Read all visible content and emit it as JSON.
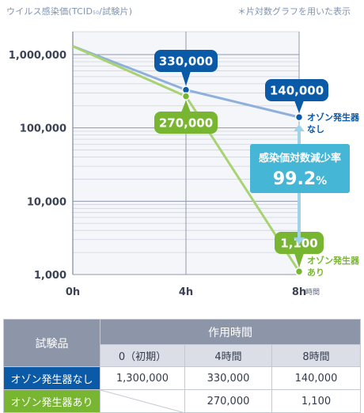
{
  "header": {
    "y_title_main": "ウイルス感染価(TCID",
    "y_title_sub": "50",
    "y_title_end": "/試験片)",
    "note": "＊片対数グラフを用いた表示"
  },
  "chart_data": {
    "type": "line",
    "yscale": "log",
    "ylim": [
      1000,
      1500000
    ],
    "x": [
      0,
      4,
      8
    ],
    "x_ticks": [
      "0h",
      "4h",
      "8h"
    ],
    "x_unit": "時間",
    "y_ticks": [
      "1,000",
      "10,000",
      "100,000",
      "1,000,000"
    ],
    "y_tick_values": [
      1000,
      10000,
      100000,
      1000000
    ],
    "grid": true,
    "series": [
      {
        "name": "オゾン発生器なし",
        "color": "#8fb0dc",
        "marker_color": "#0b5aa8",
        "points": [
          {
            "x": 0,
            "y": 1300000
          },
          {
            "x": 4,
            "y": 330000,
            "label": "330,000"
          },
          {
            "x": 8,
            "y": 140000,
            "label": "140,000"
          }
        ],
        "end_label_lines": [
          "オゾン発生器",
          "なし"
        ]
      },
      {
        "name": "オゾン発生器あり",
        "color": "#a9d373",
        "marker_color": "#78b631",
        "points": [
          {
            "x": 0,
            "y": 1300000
          },
          {
            "x": 4,
            "y": 270000,
            "label": "270,000"
          },
          {
            "x": 8,
            "y": 1100,
            "label": "1,100"
          }
        ],
        "end_label_lines": [
          "オゾン発生器",
          "あり"
        ]
      }
    ],
    "annotation": {
      "title": "感染価対数減少率",
      "value": "99.2",
      "unit": "%"
    }
  },
  "table": {
    "corner": "試験品",
    "group_header": "作用時間",
    "columns": [
      "0（初期）",
      "4時間",
      "8時間"
    ],
    "rows": [
      {
        "name": "オゾン発生器なし",
        "values": [
          "1,300,000",
          "330,000",
          "140,000"
        ]
      },
      {
        "name": "オゾン発生器あり",
        "values": [
          "",
          "270,000",
          "1,100"
        ]
      }
    ]
  }
}
